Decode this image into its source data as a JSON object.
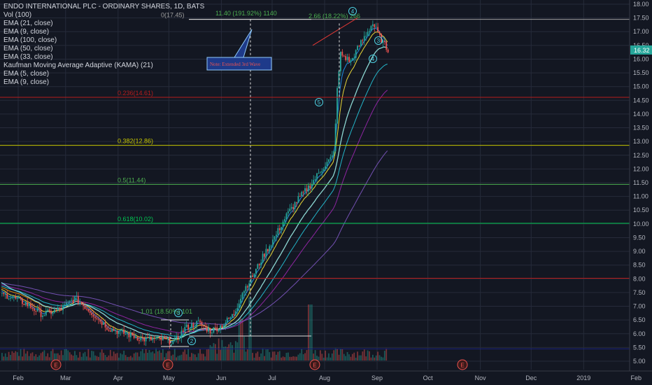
{
  "legend": {
    "title": "ENDO INTERNATIONAL PLC - ORDINARY SHARES, 1D, BATS",
    "items": [
      "Vol (100)",
      "EMA (21, close)",
      "EMA (9, close)",
      "EMA (100, close)",
      "EMA (50, close)",
      "EMA (33, close)",
      "Kaufman Moving Average Adaptive (KAMA) (21)",
      "EMA (5, close)",
      "EMA (9, close)"
    ]
  },
  "price_badge": "16.32",
  "colors": {
    "background": "#131722",
    "up": "#26a69a",
    "down": "#ef5350",
    "grid": "#262b3a",
    "text": "#b2b5be",
    "fib_green": "#4caf50",
    "fib_yellow": "#c6c600",
    "fib_red": "#b71c1c",
    "cyan": "#4dd0e1",
    "badge": "#26a69a"
  },
  "chart_data": {
    "type": "candlestick",
    "title": "ENDO INTERNATIONAL PLC - ORDINARY SHARES, 1D, BATS",
    "x_ticks": [
      "Feb",
      "Mar",
      "Apr",
      "May",
      "Jun",
      "Jul",
      "Aug",
      "Sep",
      "Oct",
      "Nov",
      "Dec",
      "2019",
      "Feb"
    ],
    "y_ticks": [
      "18.00",
      "17.50",
      "17.00",
      "16.50",
      "16.00",
      "15.50",
      "15.00",
      "14.50",
      "14.00",
      "13.50",
      "13.00",
      "12.50",
      "12.00",
      "11.50",
      "11.00",
      "10.50",
      "10.00",
      "9.50",
      "9.00",
      "8.50",
      "8.00",
      "7.50",
      "7.00",
      "6.50",
      "6.00",
      "5.50",
      "5.00"
    ],
    "ylim": [
      4.8,
      18.2
    ],
    "last_price": 16.32,
    "price_path": [
      [
        "2018-01-25",
        7.4
      ],
      [
        "2018-02-05",
        7.1
      ],
      [
        "2018-02-15",
        6.7
      ],
      [
        "2018-02-26",
        6.9
      ],
      [
        "2018-03-06",
        7.3
      ],
      [
        "2018-03-12",
        7.0
      ],
      [
        "2018-03-19",
        6.6
      ],
      [
        "2018-03-26",
        6.2
      ],
      [
        "2018-04-05",
        6.0
      ],
      [
        "2018-04-16",
        5.8
      ],
      [
        "2018-04-25",
        5.8
      ],
      [
        "2018-05-04",
        5.7
      ],
      [
        "2018-05-10",
        6.2
      ],
      [
        "2018-05-18",
        6.4
      ],
      [
        "2018-05-25",
        6.1
      ],
      [
        "2018-06-01",
        6.3
      ],
      [
        "2018-06-08",
        6.7
      ],
      [
        "2018-06-13",
        7.5
      ],
      [
        "2018-06-20",
        8.2
      ],
      [
        "2018-06-26",
        8.9
      ],
      [
        "2018-07-02",
        9.5
      ],
      [
        "2018-07-09",
        10.3
      ],
      [
        "2018-07-16",
        10.9
      ],
      [
        "2018-07-23",
        11.4
      ],
      [
        "2018-07-30",
        12.0
      ],
      [
        "2018-08-06",
        12.5
      ],
      [
        "2018-08-08",
        14.8
      ],
      [
        "2018-08-10",
        16.2
      ],
      [
        "2018-08-16",
        15.9
      ],
      [
        "2018-08-22",
        16.6
      ],
      [
        "2018-08-29",
        17.3
      ],
      [
        "2018-09-04",
        16.6
      ],
      [
        "2018-09-10",
        16.1
      ],
      [
        "2018-09-14",
        16.0
      ],
      [
        "2018-09-20",
        16.32
      ]
    ],
    "ema_series": [
      {
        "name": "EMA (5, close)",
        "color": "#2196f3"
      },
      {
        "name": "EMA (9, close)",
        "color": "#ffeb3b"
      },
      {
        "name": "EMA (21, close)",
        "color": "#ff9800"
      },
      {
        "name": "EMA (33, close)",
        "color": "#26c6da"
      },
      {
        "name": "EMA (50, close)",
        "color": "#9c27b0"
      },
      {
        "name": "EMA (100, close)",
        "color": "#7e57c2"
      },
      {
        "name": "Kaufman Moving Average Adaptive (KAMA) (21)",
        "color": "#80deea"
      }
    ],
    "fib_levels": [
      {
        "label": "0(17.45)",
        "value": 17.45,
        "color": "#9e9e9e"
      },
      {
        "label": "0.236(14.61)",
        "value": 14.61,
        "color": "#b71c1c"
      },
      {
        "label": "0.382(12.86)",
        "value": 12.86,
        "color": "#c6c600"
      },
      {
        "label": "0.5(11.44)",
        "value": 11.44,
        "color": "#4caf50"
      },
      {
        "label": "0.618(10.02)",
        "value": 10.02,
        "color": "#00c853"
      },
      {
        "label": "",
        "value": 8.02,
        "color": "#b71c1c"
      },
      {
        "label": "",
        "value": 5.45,
        "color": "#1a237e"
      }
    ],
    "annotations": [
      {
        "text": "11.40 (191.92%) 1140"
      },
      {
        "text": "2.66 (18.22%) 266"
      },
      {
        "text": "1.01 (18.50%) 101"
      },
      {
        "text": "Note: Extended 3rd Wave"
      }
    ],
    "wave_labels": [
      "2",
      "3",
      "4",
      "5",
      "3",
      "4"
    ],
    "event_markers": [
      "E",
      "E",
      "E",
      "E"
    ]
  }
}
